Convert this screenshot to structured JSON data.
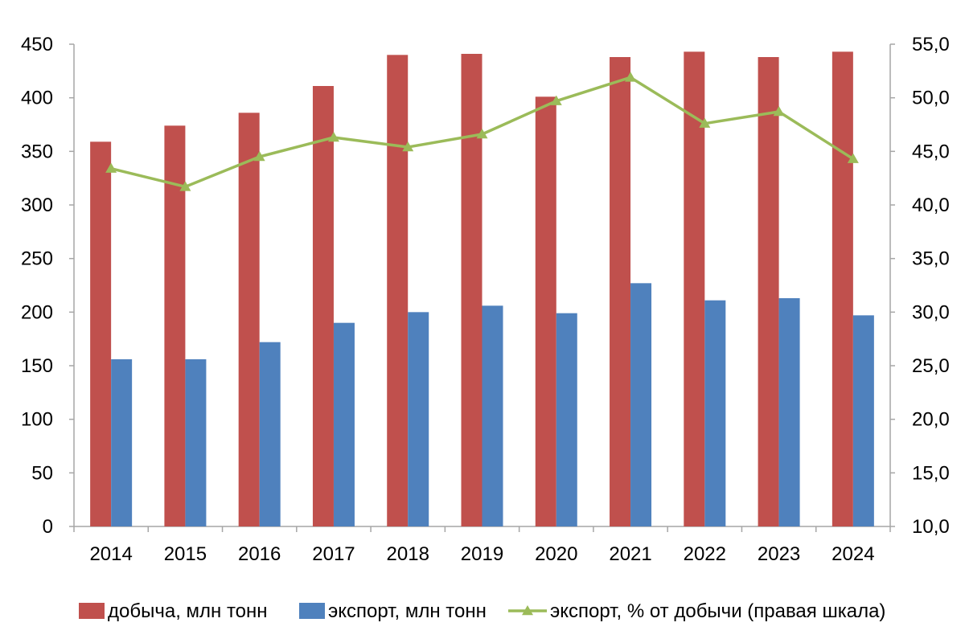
{
  "chart_data": {
    "type": "bar",
    "categories": [
      "2014",
      "2015",
      "2016",
      "2017",
      "2018",
      "2019",
      "2020",
      "2021",
      "2022",
      "2023",
      "2024"
    ],
    "series": [
      {
        "name": "добыча, млн тонн",
        "type": "bar",
        "axis": "left",
        "color": "#C0504D",
        "values": [
          359,
          374,
          386,
          411,
          440,
          441,
          401,
          438,
          443,
          438,
          443
        ]
      },
      {
        "name": "экспорт, млн тонн",
        "type": "bar",
        "axis": "left",
        "color": "#4F81BD",
        "values": [
          156,
          156,
          172,
          190,
          200,
          206,
          199,
          227,
          211,
          213,
          197
        ]
      },
      {
        "name": "экспорт, % от добычи (правая шкала)",
        "type": "line",
        "marker": "triangle",
        "axis": "right",
        "color": "#9BBB59",
        "values": [
          43.4,
          41.7,
          44.5,
          46.3,
          45.4,
          46.6,
          49.7,
          51.9,
          47.6,
          48.7,
          44.3
        ]
      }
    ],
    "y_left": {
      "min": 0,
      "max": 450,
      "step": 50
    },
    "y_right": {
      "min": 10.0,
      "max": 55.0,
      "step": 5.0
    },
    "right_tick_labels": [
      "10,0",
      "15,0",
      "20,0",
      "25,0",
      "30,0",
      "35,0",
      "40,0",
      "45,0",
      "50,0",
      "55,0"
    ],
    "grid": false,
    "legend_position": "bottom",
    "title": "",
    "xlabel": "",
    "ylabel": ""
  }
}
